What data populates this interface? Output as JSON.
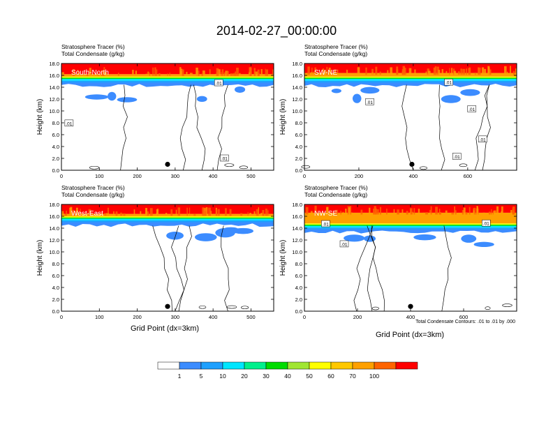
{
  "figure": {
    "title": "2014-02-27_00:00:00",
    "x_axis_title": "Grid Point (dx=3km)",
    "contour_note": "Total Condensate Contours: .01 to .01 by .000"
  },
  "colors": {
    "colorbar": [
      "#ffffff",
      "#3c8cff",
      "#1ea0ff",
      "#00e6ff",
      "#00f08c",
      "#00dc00",
      "#a0e632",
      "#ffff00",
      "#ffc800",
      "#ffa000",
      "#ff6400",
      "#ff0000"
    ]
  },
  "colorbar": {
    "tick_labels": [
      "1",
      "5",
      "10",
      "20",
      "30",
      "40",
      "50",
      "60",
      "70",
      "100"
    ]
  },
  "chart_data": [
    {
      "type": "heatmap",
      "panel": "South-North",
      "subtitle1": "Stratosphere Tracer   (%)",
      "subtitle2": "Total Condensate   (g/kg)",
      "ylabel": "Height (km)",
      "xlim": [
        0,
        560
      ],
      "ylim": [
        0,
        18
      ],
      "xticks": [
        "0",
        "100",
        "200",
        "300",
        "400",
        "500"
      ],
      "yticks": [
        "0.0",
        "2.0",
        "4.0",
        "6.0",
        "8.0",
        "10.0",
        "12.0",
        "14.0",
        "16.0",
        "18.0"
      ],
      "tracer_top_km": 16.2,
      "tracer_base_km": 14.8,
      "marker": {
        "x": 280,
        "y": 1.0
      },
      "contour_labels": [
        {
          "text": ".01",
          "x": 20,
          "y": 7.9
        },
        {
          "text": ".01",
          "x": 430,
          "y": 2.0
        },
        {
          "text": ".01",
          "x": 415,
          "y": 14.7
        }
      ]
    },
    {
      "type": "heatmap",
      "panel": "SW-NE",
      "subtitle1": "Stratosphere Tracer   (%)",
      "subtitle2": "Total Condensate   (g/kg)",
      "ylabel": "Height (km)",
      "xlim": [
        0,
        780
      ],
      "ylim": [
        0,
        18
      ],
      "xticks": [
        "0",
        "200",
        "400",
        "600"
      ],
      "yticks": [
        "0.0",
        "2.0",
        "4.0",
        "6.0",
        "8.0",
        "10.0",
        "12.0",
        "14.0",
        "16.0",
        "18.0"
      ],
      "tracer_top_km": 16.4,
      "tracer_base_km": 14.8,
      "marker": {
        "x": 395,
        "y": 1.0
      },
      "contour_labels": [
        {
          "text": ".01",
          "x": 240,
          "y": 11.5
        },
        {
          "text": ".01",
          "x": 530,
          "y": 14.8
        },
        {
          "text": ".01",
          "x": 615,
          "y": 10.3
        },
        {
          "text": ".01",
          "x": 655,
          "y": 5.2
        },
        {
          "text": ".01",
          "x": 560,
          "y": 2.3
        }
      ]
    },
    {
      "type": "heatmap",
      "panel": "West-East",
      "subtitle1": "Stratosphere Tracer   (%)",
      "subtitle2": "Total Condensate   (g/kg)",
      "ylabel": "Height (km)",
      "xlim": [
        0,
        560
      ],
      "ylim": [
        0,
        18
      ],
      "xticks": [
        "0",
        "100",
        "200",
        "300",
        "400",
        "500"
      ],
      "yticks": [
        "0.0",
        "2.0",
        "4.0",
        "6.0",
        "8.0",
        "10.0",
        "12.0",
        "14.0",
        "16.0",
        "18.0"
      ],
      "tracer_top_km": 16.4,
      "tracer_base_km": 15.0,
      "marker": {
        "x": 280,
        "y": 0.8
      },
      "contour_labels": []
    },
    {
      "type": "heatmap",
      "panel": "NW-SE",
      "subtitle1": "Stratosphere Tracer   (%)",
      "subtitle2": "Total Condensate   (g/kg)",
      "ylabel": "Height (km)",
      "xlim": [
        0,
        800
      ],
      "ylim": [
        0,
        18
      ],
      "xticks": [
        "0",
        "200",
        "400",
        "600"
      ],
      "yticks": [
        "0.0",
        "2.0",
        "4.0",
        "6.0",
        "8.0",
        "10.0",
        "12.0",
        "14.0",
        "16.0",
        "18.0"
      ],
      "tracer_top_km": 16.6,
      "tracer_base_km": 13.8,
      "marker": {
        "x": 400,
        "y": 0.8
      },
      "contour_labels": [
        {
          "text": ".01",
          "x": 80,
          "y": 14.7
        },
        {
          "text": ".01",
          "x": 150,
          "y": 11.3
        },
        {
          "text": ".01",
          "x": 685,
          "y": 14.8
        }
      ]
    }
  ]
}
